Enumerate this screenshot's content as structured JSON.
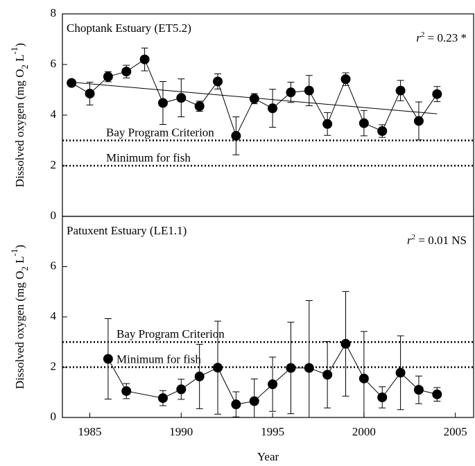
{
  "chart_data": [
    {
      "type": "line",
      "title": "Choptank Estuary (ET5.2)",
      "annotation": {
        "base": "r",
        "sup": "2",
        "rest": " = 0.23 *"
      },
      "ylabel": {
        "a": "Dissolved oxygen (mg O",
        "sub": "2",
        "b": " L",
        "sup": "-1",
        "c": ")"
      },
      "x": [
        1984,
        1985,
        1986,
        1987,
        1988,
        1989,
        1990,
        1991,
        1992,
        1993,
        1994,
        1995,
        1996,
        1997,
        1998,
        1999,
        2000,
        2001,
        2002,
        2003,
        2004
      ],
      "series": [
        {
          "color": "#000000",
          "values": [
            5.27,
            4.85,
            5.52,
            5.72,
            6.2,
            4.48,
            4.68,
            4.35,
            5.33,
            3.18,
            4.65,
            4.27,
            4.9,
            4.97,
            3.65,
            5.42,
            3.68,
            3.37,
            4.97,
            3.77,
            4.83
          ],
          "errors": [
            0,
            0.45,
            0.2,
            0.25,
            0.45,
            0.85,
            0.75,
            0.2,
            0.3,
            0.75,
            0.2,
            0.75,
            0.4,
            0.6,
            0.45,
            0.25,
            0.5,
            0.25,
            0.4,
            0.75,
            0.3
          ]
        }
      ],
      "trend": {
        "x": [
          1984,
          2004
        ],
        "values": [
          5.3,
          4.05
        ]
      },
      "hlines": [
        {
          "value": 3,
          "label": "Bay Program Criterion"
        },
        {
          "value": 2,
          "label": "Minimum for fish"
        }
      ],
      "xlim": [
        1983.5,
        2006
      ],
      "ylim": [
        0,
        8
      ],
      "yticks": [
        0,
        2,
        4,
        6,
        8
      ]
    },
    {
      "type": "line",
      "title": "Patuxent Estuary (LE1.1)",
      "annotation": {
        "base": "r",
        "sup": "2",
        "rest": " = 0.01 NS"
      },
      "ylabel": {
        "a": "Dissolved oxygen (mg O",
        "sub": "2",
        "b": " L",
        "sup": "-1",
        "c": ")"
      },
      "xlabel": "Year",
      "x": [
        1986,
        1987,
        1989,
        1990,
        1991,
        1992,
        1993,
        1994,
        1995,
        1996,
        1997,
        1998,
        1999,
        2000,
        2001,
        2002,
        2003,
        2004
      ],
      "series": [
        {
          "color": "#000000",
          "values": [
            2.33,
            1.05,
            0.77,
            1.12,
            1.63,
            1.98,
            0.52,
            0.65,
            1.32,
            1.97,
            1.97,
            1.7,
            2.93,
            1.55,
            0.8,
            1.78,
            1.1,
            0.92
          ],
          "errors": [
            1.6,
            0.3,
            0.3,
            0.4,
            1.28,
            1.85,
            0.5,
            0.88,
            1.08,
            1.82,
            2.68,
            1.32,
            2.08,
            1.87,
            0.42,
            1.47,
            0.55,
            0.27
          ]
        }
      ],
      "hlines": [
        {
          "value": 3,
          "label": "Bay Program Criterion"
        },
        {
          "value": 2,
          "label": "Minimum for fish"
        }
      ],
      "xlim": [
        1983.5,
        2006
      ],
      "xticks": [
        1985,
        1990,
        1995,
        2000,
        2005
      ],
      "ylim": [
        0,
        8
      ],
      "yticks": [
        0,
        2,
        4,
        6
      ]
    }
  ]
}
